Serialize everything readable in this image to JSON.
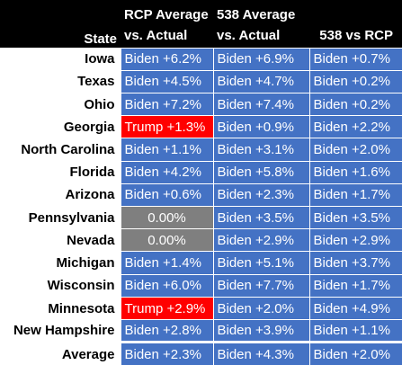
{
  "chart_data": {
    "type": "table",
    "headers": {
      "state": "State",
      "col1_line1": "RCP Average",
      "col1_line2": "vs. Actual",
      "col2_line1": "538 Average",
      "col2_line2": "vs. Actual",
      "col3": "538 vs RCP"
    },
    "rows": [
      {
        "state": "Iowa",
        "rcp": {
          "text": "Biden +6.2%",
          "party": "biden",
          "value": 6.2
        },
        "fte": {
          "text": "Biden +6.9%",
          "party": "biden",
          "value": 6.9
        },
        "diff": {
          "text": "Biden +0.7%",
          "party": "biden",
          "value": 0.7
        }
      },
      {
        "state": "Texas",
        "rcp": {
          "text": "Biden +4.5%",
          "party": "biden",
          "value": 4.5
        },
        "fte": {
          "text": "Biden +4.7%",
          "party": "biden",
          "value": 4.7
        },
        "diff": {
          "text": "Biden +0.2%",
          "party": "biden",
          "value": 0.2
        }
      },
      {
        "state": "Ohio",
        "rcp": {
          "text": "Biden +7.2%",
          "party": "biden",
          "value": 7.2
        },
        "fte": {
          "text": "Biden +7.4%",
          "party": "biden",
          "value": 7.4
        },
        "diff": {
          "text": "Biden +0.2%",
          "party": "biden",
          "value": 0.2
        }
      },
      {
        "state": "Georgia",
        "rcp": {
          "text": "Trump +1.3%",
          "party": "trump",
          "value": 1.3
        },
        "fte": {
          "text": "Biden +0.9%",
          "party": "biden",
          "value": 0.9
        },
        "diff": {
          "text": "Biden +2.2%",
          "party": "biden",
          "value": 2.2
        }
      },
      {
        "state": "North Carolina",
        "rcp": {
          "text": "Biden +1.1%",
          "party": "biden",
          "value": 1.1
        },
        "fte": {
          "text": "Biden +3.1%",
          "party": "biden",
          "value": 3.1
        },
        "diff": {
          "text": "Biden +2.0%",
          "party": "biden",
          "value": 2.0
        }
      },
      {
        "state": "Florida",
        "rcp": {
          "text": "Biden +4.2%",
          "party": "biden",
          "value": 4.2
        },
        "fte": {
          "text": "Biden +5.8%",
          "party": "biden",
          "value": 5.8
        },
        "diff": {
          "text": "Biden +1.6%",
          "party": "biden",
          "value": 1.6
        }
      },
      {
        "state": "Arizona",
        "rcp": {
          "text": "Biden +0.6%",
          "party": "biden",
          "value": 0.6
        },
        "fte": {
          "text": "Biden +2.3%",
          "party": "biden",
          "value": 2.3
        },
        "diff": {
          "text": "Biden +1.7%",
          "party": "biden",
          "value": 1.7
        }
      },
      {
        "state": "Pennsylvania",
        "rcp": {
          "text": "0.00%",
          "party": "neutral",
          "value": 0.0
        },
        "fte": {
          "text": "Biden +3.5%",
          "party": "biden",
          "value": 3.5
        },
        "diff": {
          "text": "Biden +3.5%",
          "party": "biden",
          "value": 3.5
        }
      },
      {
        "state": "Nevada",
        "rcp": {
          "text": "0.00%",
          "party": "neutral",
          "value": 0.0
        },
        "fte": {
          "text": "Biden +2.9%",
          "party": "biden",
          "value": 2.9
        },
        "diff": {
          "text": "Biden +2.9%",
          "party": "biden",
          "value": 2.9
        }
      },
      {
        "state": "Michigan",
        "rcp": {
          "text": "Biden +1.4%",
          "party": "biden",
          "value": 1.4
        },
        "fte": {
          "text": "Biden +5.1%",
          "party": "biden",
          "value": 5.1
        },
        "diff": {
          "text": "Biden +3.7%",
          "party": "biden",
          "value": 3.7
        }
      },
      {
        "state": "Wisconsin",
        "rcp": {
          "text": "Biden +6.0%",
          "party": "biden",
          "value": 6.0
        },
        "fte": {
          "text": "Biden +7.7%",
          "party": "biden",
          "value": 7.7
        },
        "diff": {
          "text": "Biden +1.7%",
          "party": "biden",
          "value": 1.7
        }
      },
      {
        "state": "Minnesota",
        "rcp": {
          "text": "Trump +2.9%",
          "party": "trump",
          "value": 2.9
        },
        "fte": {
          "text": "Biden +2.0%",
          "party": "biden",
          "value": 2.0
        },
        "diff": {
          "text": "Biden +4.9%",
          "party": "biden",
          "value": 4.9
        }
      },
      {
        "state": "New Hampshire",
        "rcp": {
          "text": "Biden +2.8%",
          "party": "biden",
          "value": 2.8
        },
        "fte": {
          "text": "Biden +3.9%",
          "party": "biden",
          "value": 3.9
        },
        "diff": {
          "text": "Biden +1.1%",
          "party": "biden",
          "value": 1.1
        }
      }
    ],
    "average": {
      "state": "Average",
      "rcp": {
        "text": "Biden +2.3%",
        "party": "biden",
        "value": 2.3
      },
      "fte": {
        "text": "Biden +4.3%",
        "party": "biden",
        "value": 4.3
      },
      "diff": {
        "text": "Biden +2.0%",
        "party": "biden",
        "value": 2.0
      }
    },
    "colors": {
      "header_bg": "#000000",
      "biden": "#4472c4",
      "trump": "#ff0000",
      "neutral": "#7f7f7f"
    }
  }
}
